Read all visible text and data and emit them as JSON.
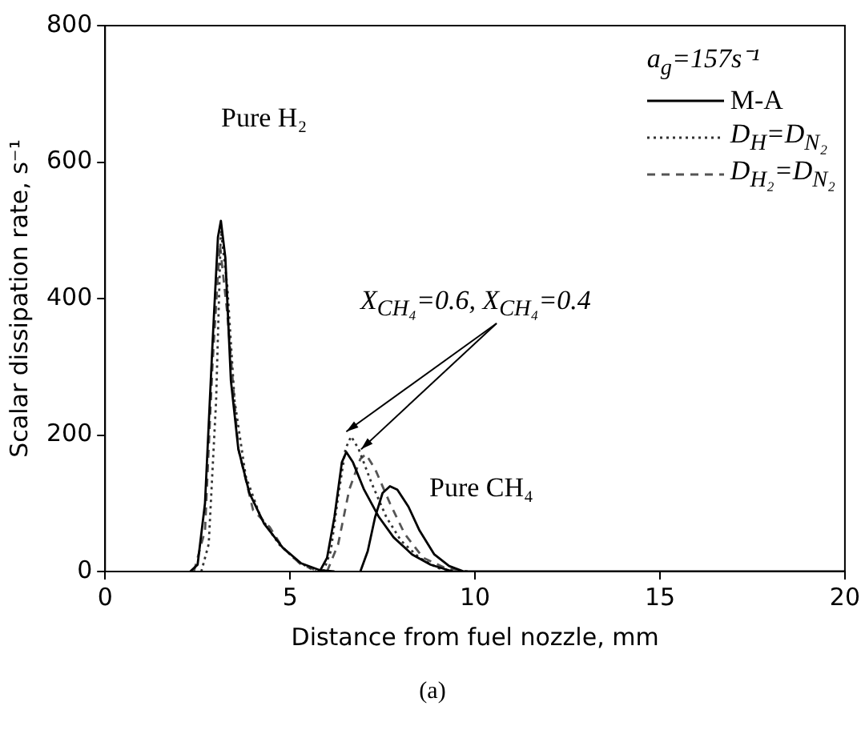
{
  "chart_data": {
    "type": "line",
    "xlabel": "Distance from fuel nozzle, mm",
    "ylabel": "Scalar dissipation rate, s⁻¹",
    "legend_title": "a$_{g}$=157s⁻¹",
    "legend": "top right",
    "grid": false,
    "marker": "none",
    "xlim": [
      0,
      20
    ],
    "xticks": [
      0,
      5,
      10,
      15,
      20
    ],
    "ylim": [
      0,
      800
    ],
    "yticks": [
      0,
      200,
      400,
      600,
      800
    ],
    "series": [
      {
        "name": "M-A",
        "color": "#000000",
        "line_style": "solid",
        "x": [
          2.3,
          2.5,
          2.7,
          2.9,
          3.05,
          3.13,
          3.25,
          3.4,
          3.6,
          3.9,
          4.3,
          4.8,
          5.3,
          5.8,
          6.2,
          null,
          5.8,
          6.0,
          6.2,
          6.4,
          6.52,
          6.7,
          7.0,
          7.4,
          7.8,
          8.3,
          8.8,
          9.4,
          null,
          6.9,
          7.1,
          7.3,
          7.5,
          7.7,
          7.9,
          8.2,
          8.5,
          8.9,
          9.3,
          9.7,
          20
        ],
        "values": [
          0,
          10,
          100,
          330,
          490,
          514,
          460,
          280,
          180,
          115,
          70,
          35,
          12,
          2,
          0,
          null,
          0,
          20,
          80,
          160,
          175,
          160,
          120,
          80,
          50,
          25,
          10,
          0,
          null,
          0,
          30,
          80,
          115,
          125,
          120,
          95,
          60,
          25,
          8,
          0,
          0
        ]
      },
      {
        "name": "D$_{H}$=D$_{N₂}$",
        "color": "#333333",
        "line_style": "dotted",
        "x": [
          2.6,
          2.8,
          3.0,
          3.13,
          3.3,
          3.5,
          3.8,
          4.2,
          4.7,
          5.2,
          5.7,
          null,
          5.9,
          6.1,
          6.3,
          6.5,
          6.65,
          6.85,
          7.2,
          7.6,
          8.0,
          8.5,
          9.0,
          9.5
        ],
        "values": [
          0,
          40,
          250,
          500,
          420,
          250,
          140,
          80,
          40,
          15,
          0,
          null,
          0,
          30,
          110,
          180,
          198,
          180,
          130,
          80,
          45,
          20,
          5,
          0
        ]
      },
      {
        "name": "D$_{H₂}$=D$_{N₂}$",
        "color": "#555555",
        "line_style": "dashed",
        "x": [
          2.4,
          2.7,
          2.9,
          3.1,
          3.3,
          3.6,
          4.0,
          4.45,
          4.8,
          5.3,
          5.8,
          null,
          6.0,
          6.3,
          6.6,
          6.9,
          7.05,
          7.3,
          7.7,
          8.1,
          8.6,
          9.2,
          9.8
        ],
        "values": [
          0,
          60,
          300,
          480,
          380,
          180,
          90,
          65,
          35,
          10,
          0,
          null,
          0,
          40,
          120,
          165,
          172,
          150,
          100,
          55,
          20,
          5,
          0
        ]
      }
    ],
    "annotations": [
      "Pure H₂",
      "Pure CH₄",
      {
        "text": "X$_{CH₄}$=0.6, X$_{CH₄}$=0.4",
        "x": 6.65,
        "y": 198
      },
      "(a)"
    ]
  }
}
